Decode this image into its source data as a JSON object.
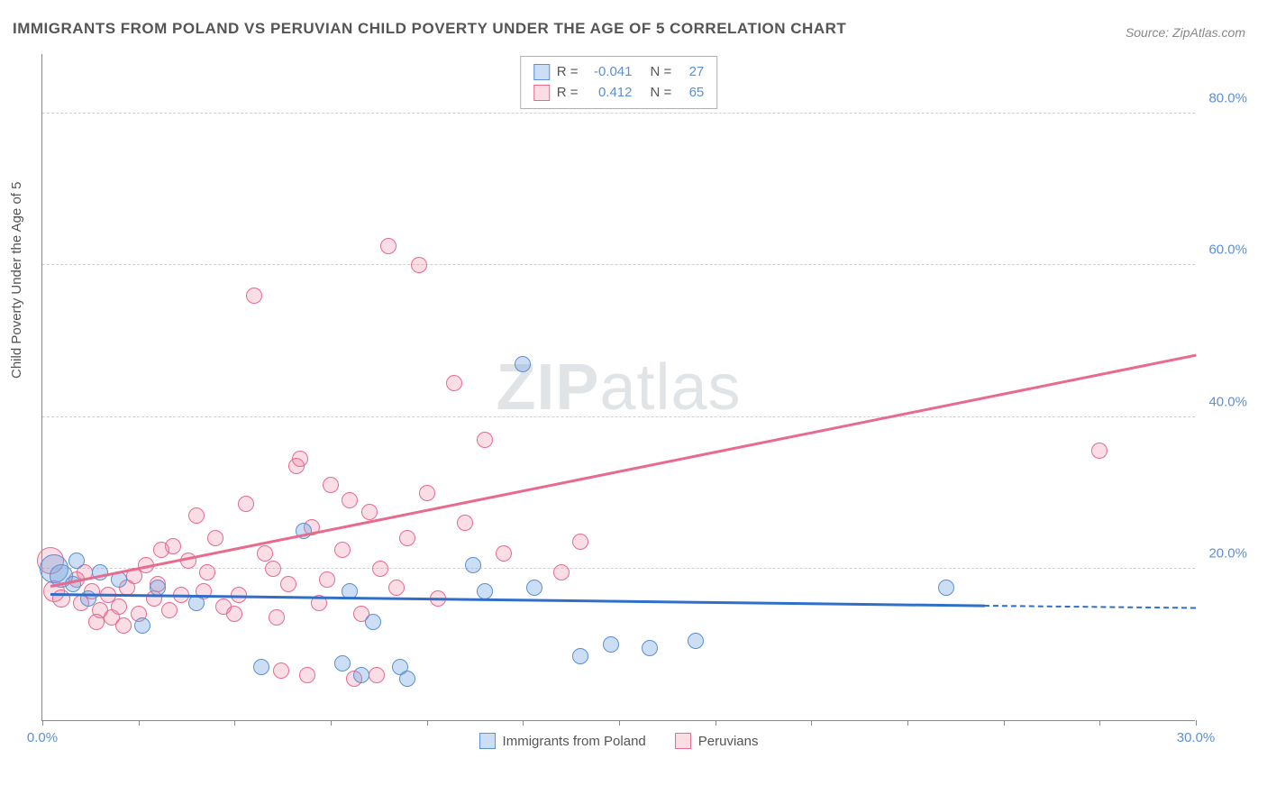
{
  "title": "IMMIGRANTS FROM POLAND VS PERUVIAN CHILD POVERTY UNDER THE AGE OF 5 CORRELATION CHART",
  "source_prefix": "Source: ",
  "source_name": "ZipAtlas.com",
  "y_axis_label": "Child Poverty Under the Age of 5",
  "watermark_bold": "ZIP",
  "watermark_light": "atlas",
  "chart": {
    "type": "scatter",
    "xlim": [
      0,
      30
    ],
    "ylim": [
      0,
      88
    ],
    "y_ticks": [
      20,
      40,
      60,
      80
    ],
    "y_tick_labels": [
      "20.0%",
      "40.0%",
      "60.0%",
      "80.0%"
    ],
    "x_ticks": [
      0,
      2.5,
      5,
      7.5,
      10,
      12.5,
      15,
      17.5,
      20,
      22.5,
      25,
      27.5,
      30
    ],
    "x_tick_labels_shown": {
      "0": "0.0%",
      "30": "30.0%"
    },
    "background_color": "#ffffff",
    "grid_color": "#d0d0d0",
    "axis_color": "#888888",
    "tick_label_color": "#5b8fd6",
    "series": {
      "blue": {
        "label": "Immigrants from Poland",
        "color_fill": "rgba(110,160,220,0.35)",
        "color_stroke": "#5b8fd6",
        "R": "-0.041",
        "N": "27",
        "marker_radius": 9,
        "trend": {
          "x1": 0.2,
          "y1": 16.5,
          "x2": 24.5,
          "y2": 15.0,
          "dash_to_x": 30,
          "dash_to_y": 14.7,
          "color": "#2f6fc9"
        },
        "points": [
          {
            "x": 0.3,
            "y": 20.0,
            "r": 16
          },
          {
            "x": 0.5,
            "y": 19.0,
            "r": 13
          },
          {
            "x": 0.8,
            "y": 18.0,
            "r": 9
          },
          {
            "x": 1.5,
            "y": 19.5,
            "r": 9
          },
          {
            "x": 2.6,
            "y": 12.5,
            "r": 9
          },
          {
            "x": 3.0,
            "y": 17.5,
            "r": 9
          },
          {
            "x": 4.0,
            "y": 15.5,
            "r": 9
          },
          {
            "x": 5.7,
            "y": 7.0,
            "r": 9
          },
          {
            "x": 6.8,
            "y": 25.0,
            "r": 9
          },
          {
            "x": 7.8,
            "y": 7.5,
            "r": 9
          },
          {
            "x": 8.0,
            "y": 17.0,
            "r": 9
          },
          {
            "x": 8.3,
            "y": 6.0,
            "r": 9
          },
          {
            "x": 8.6,
            "y": 13.0,
            "r": 9
          },
          {
            "x": 9.3,
            "y": 7.0,
            "r": 9
          },
          {
            "x": 9.5,
            "y": 5.5,
            "r": 9
          },
          {
            "x": 11.2,
            "y": 20.5,
            "r": 9
          },
          {
            "x": 11.5,
            "y": 17.0,
            "r": 9
          },
          {
            "x": 12.5,
            "y": 47.0,
            "r": 9
          },
          {
            "x": 12.8,
            "y": 17.5,
            "r": 9
          },
          {
            "x": 14.0,
            "y": 8.5,
            "r": 9
          },
          {
            "x": 14.8,
            "y": 10.0,
            "r": 9
          },
          {
            "x": 15.8,
            "y": 9.5,
            "r": 9
          },
          {
            "x": 17.0,
            "y": 10.5,
            "r": 9
          },
          {
            "x": 23.5,
            "y": 17.5,
            "r": 9
          },
          {
            "x": 1.2,
            "y": 16.0,
            "r": 9
          },
          {
            "x": 2.0,
            "y": 18.5,
            "r": 9
          },
          {
            "x": 0.9,
            "y": 21.0,
            "r": 9
          }
        ]
      },
      "pink": {
        "label": "Peruvians",
        "color_fill": "rgba(235,120,150,0.25)",
        "color_stroke": "#e86a8e",
        "R": "0.412",
        "N": "65",
        "marker_radius": 9,
        "trend": {
          "x1": 0.2,
          "y1": 17.5,
          "x2": 30,
          "y2": 48.0,
          "color": "#e86a8e"
        },
        "points": [
          {
            "x": 0.2,
            "y": 21.0,
            "r": 15
          },
          {
            "x": 0.3,
            "y": 17.0,
            "r": 12
          },
          {
            "x": 0.5,
            "y": 16.0,
            "r": 10
          },
          {
            "x": 0.9,
            "y": 18.5,
            "r": 9
          },
          {
            "x": 1.0,
            "y": 15.5,
            "r": 9
          },
          {
            "x": 1.3,
            "y": 17.0,
            "r": 9
          },
          {
            "x": 1.5,
            "y": 14.5,
            "r": 9
          },
          {
            "x": 1.7,
            "y": 16.5,
            "r": 9
          },
          {
            "x": 1.8,
            "y": 13.5,
            "r": 9
          },
          {
            "x": 2.0,
            "y": 15.0,
            "r": 9
          },
          {
            "x": 2.2,
            "y": 17.5,
            "r": 9
          },
          {
            "x": 2.4,
            "y": 19.0,
            "r": 9
          },
          {
            "x": 2.5,
            "y": 14.0,
            "r": 9
          },
          {
            "x": 2.7,
            "y": 20.5,
            "r": 9
          },
          {
            "x": 2.9,
            "y": 16.0,
            "r": 9
          },
          {
            "x": 3.1,
            "y": 22.5,
            "r": 9
          },
          {
            "x": 3.3,
            "y": 14.5,
            "r": 9
          },
          {
            "x": 3.4,
            "y": 23.0,
            "r": 9
          },
          {
            "x": 3.6,
            "y": 16.5,
            "r": 9
          },
          {
            "x": 3.8,
            "y": 21.0,
            "r": 9
          },
          {
            "x": 4.0,
            "y": 27.0,
            "r": 9
          },
          {
            "x": 4.2,
            "y": 17.0,
            "r": 9
          },
          {
            "x": 4.5,
            "y": 24.0,
            "r": 9
          },
          {
            "x": 4.7,
            "y": 15.0,
            "r": 9
          },
          {
            "x": 5.0,
            "y": 14.0,
            "r": 9
          },
          {
            "x": 5.3,
            "y": 28.5,
            "r": 9
          },
          {
            "x": 5.5,
            "y": 56.0,
            "r": 9
          },
          {
            "x": 5.8,
            "y": 22.0,
            "r": 9
          },
          {
            "x": 6.0,
            "y": 20.0,
            "r": 9
          },
          {
            "x": 6.2,
            "y": 6.5,
            "r": 9
          },
          {
            "x": 6.4,
            "y": 18.0,
            "r": 9
          },
          {
            "x": 6.6,
            "y": 33.5,
            "r": 9
          },
          {
            "x": 6.7,
            "y": 34.5,
            "r": 9
          },
          {
            "x": 6.9,
            "y": 6.0,
            "r": 9
          },
          {
            "x": 7.0,
            "y": 25.5,
            "r": 9
          },
          {
            "x": 7.2,
            "y": 15.5,
            "r": 9
          },
          {
            "x": 7.5,
            "y": 31.0,
            "r": 9
          },
          {
            "x": 7.8,
            "y": 22.5,
            "r": 9
          },
          {
            "x": 8.0,
            "y": 29.0,
            "r": 9
          },
          {
            "x": 8.1,
            "y": 5.5,
            "r": 9
          },
          {
            "x": 8.3,
            "y": 14.0,
            "r": 9
          },
          {
            "x": 8.5,
            "y": 27.5,
            "r": 9
          },
          {
            "x": 8.8,
            "y": 20.0,
            "r": 9
          },
          {
            "x": 9.0,
            "y": 62.5,
            "r": 9
          },
          {
            "x": 9.2,
            "y": 17.5,
            "r": 9
          },
          {
            "x": 9.5,
            "y": 24.0,
            "r": 9
          },
          {
            "x": 9.8,
            "y": 60.0,
            "r": 9
          },
          {
            "x": 10.0,
            "y": 30.0,
            "r": 9
          },
          {
            "x": 10.3,
            "y": 16.0,
            "r": 9
          },
          {
            "x": 10.7,
            "y": 44.5,
            "r": 9
          },
          {
            "x": 11.0,
            "y": 26.0,
            "r": 9
          },
          {
            "x": 11.5,
            "y": 37.0,
            "r": 9
          },
          {
            "x": 12.0,
            "y": 22.0,
            "r": 9
          },
          {
            "x": 13.5,
            "y": 19.5,
            "r": 9
          },
          {
            "x": 14.0,
            "y": 23.5,
            "r": 9
          },
          {
            "x": 27.5,
            "y": 35.5,
            "r": 9
          },
          {
            "x": 1.1,
            "y": 19.5,
            "r": 9
          },
          {
            "x": 1.4,
            "y": 13.0,
            "r": 9
          },
          {
            "x": 2.1,
            "y": 12.5,
            "r": 9
          },
          {
            "x": 3.0,
            "y": 18.0,
            "r": 9
          },
          {
            "x": 4.3,
            "y": 19.5,
            "r": 9
          },
          {
            "x": 5.1,
            "y": 16.5,
            "r": 9
          },
          {
            "x": 6.1,
            "y": 13.5,
            "r": 9
          },
          {
            "x": 7.4,
            "y": 18.5,
            "r": 9
          },
          {
            "x": 8.7,
            "y": 6.0,
            "r": 9
          }
        ]
      }
    },
    "stats_legend": {
      "R_label": "R =",
      "N_label": "N ="
    }
  }
}
